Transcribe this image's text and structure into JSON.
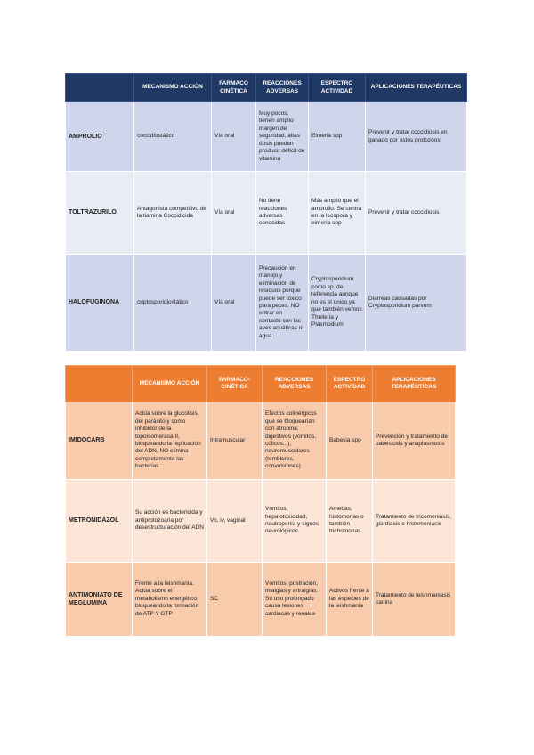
{
  "tables": [
    {
      "headers": [
        "MECANISMO ACCIÓN",
        "FARMACO CINÉTICA",
        "REACCIONES ADVERSAS",
        "ESPECTRO ACTIVIDAD",
        "APLICACIONES TERAPÉUTICAS"
      ],
      "rows": [
        [
          "AMPROLIO",
          "coccidiostático",
          "Vía oral",
          "Muy pocos: tienen amplio margen de seguridad, altas dosis pueden producir déficit de vitamina",
          "Eimeria spp",
          "Prevenir y tratar coccidiosis en ganado por estos protozoos"
        ],
        [
          "TOLTRAZURILO",
          "Antagonista competitivo de la tiamina Coccidicida",
          "Vía oral",
          "No tiene reacciones adversas conocidas",
          "Más amplio que el amprolio. Se centra en la Isospora y eimeria spp",
          "Prevenir y tratar coccidiosis"
        ],
        [
          "HALOFUGINONA",
          "criptosporidiostático",
          "Vía oral",
          "Precaución en manejo y eliminación de residuos porque puede ser tóxico para peces. NO entrar en contacto con las aves acuáticas ni agua",
          "Cryptosporidium como sp. de referencia aunque no es el único ya que también vemos Theileria y Plasmodium",
          "Diarreas causadas por Cryptosporidium parvum"
        ]
      ]
    },
    {
      "headers": [
        "MECANISMO ACCIÓN",
        "FARMACO-CINÉTICA",
        "REACCIONES ADVERSAS",
        "ESPECTRO ACTIVIDAD",
        "APLICACIONES TERAPÉUTICAS"
      ],
      "rows": [
        [
          "IMIDOCARB",
          "Actúa sobre la glucolisis del parásito y como inhibidor de la topoisomerasa II, bloqueando la replicación del ADN. NO elimina completamente las bacterias",
          "Intramuscular",
          "Efectos colinérgicos que se bloquearían con atropina: digestivos (vómitos, cólicos...), neuromusculares (temblores, convulsiones)",
          "Babesia spp",
          "Prevención y tratamiento de babesiosis y anaplasmosis"
        ],
        [
          "METRONIDAZOL",
          "Su acción es bactericida y antiprotozoaria por desestructuración del ADN",
          "Vo, iv, vaginal",
          "Vómitos, hepatotoxicidad, neutropenia y signos neurológicos",
          "Amebas, histomonas o también trichomonas",
          "Tratamiento de tricomoniasis, giardiasis e histomoniasis"
        ],
        [
          "ANTIMONIATO DE MEGLUMINA",
          "Frente a la leishmania. Actúa sobre el metabolismo energético, bloqueando la formación de ATP Y GTP",
          "SC",
          "Vómitos, postración, mialgias y artralgias. Su uso prolongado causa lesiones cardiacas y renales",
          "Activos frente a las especies de la leishmania",
          "Tratamiento de leishmaniasis canina"
        ]
      ]
    }
  ]
}
